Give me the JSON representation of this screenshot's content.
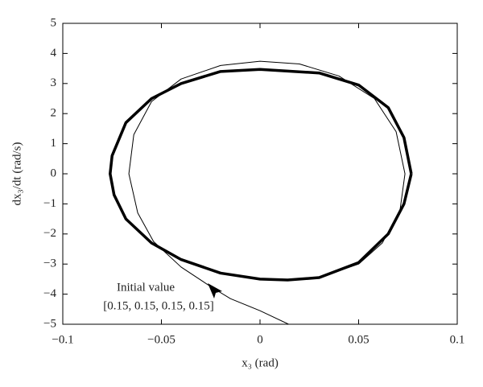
{
  "chart_data": {
    "type": "line",
    "x_label": "x₃ (rad)",
    "y_label": "dx₃/dt (rad/s)",
    "annotation": [
      "Initial value",
      "[0.15, 0.15, 0.15, 0.15]"
    ],
    "xlim": [
      -0.1,
      0.1
    ],
    "xticks": [
      {
        "value": -0.1,
        "label": "−0.1"
      },
      {
        "value": -0.05,
        "label": "−0.05"
      },
      0,
      0.05,
      0.1
    ],
    "ylim": [
      -5,
      5
    ],
    "yticks": [
      {
        "value": -5,
        "label": "−5"
      },
      {
        "value": -4,
        "label": "−4"
      },
      {
        "value": -3,
        "label": "−3"
      },
      {
        "value": -2,
        "label": "−2"
      },
      {
        "value": -1,
        "label": "−1"
      },
      0,
      1,
      2,
      3,
      4,
      5
    ],
    "series": [
      {
        "color": "#000000",
        "linewidth": 3.5,
        "x": [
          0.0767,
          0.073,
          0.065,
          0.05,
          0.03,
          0.0,
          -0.02,
          -0.04,
          -0.055,
          -0.068,
          -0.075,
          -0.076,
          -0.074,
          -0.068,
          -0.055,
          -0.04,
          -0.02,
          0.0,
          0.014,
          0.03,
          0.05,
          0.065,
          0.073,
          0.0767
        ],
        "values": [
          0,
          1.2,
          2.2,
          2.95,
          3.35,
          3.47,
          3.4,
          3.0,
          2.5,
          1.7,
          0.6,
          0,
          -0.7,
          -1.5,
          -2.3,
          -2.85,
          -3.3,
          -3.5,
          -3.53,
          -3.45,
          -2.95,
          -2.0,
          -1.0,
          0
        ]
      },
      {
        "color": "#000000",
        "linewidth": 1,
        "x": [
          0.0145,
          0.0,
          -0.015,
          -0.025,
          -0.04,
          -0.054,
          -0.062,
          -0.0665,
          -0.064,
          -0.055,
          -0.04,
          -0.02,
          0.0,
          0.02,
          0.04,
          0.058,
          0.069,
          0.0735,
          0.071,
          0.062,
          0.05,
          0.03,
          0.014,
          0.0,
          -0.02,
          -0.04,
          -0.055
        ],
        "values": [
          -5,
          -4.55,
          -4.15,
          -3.75,
          -3.1,
          -2.25,
          -1.3,
          0,
          1.3,
          2.4,
          3.15,
          3.6,
          3.74,
          3.65,
          3.25,
          2.5,
          1.4,
          0,
          -1.2,
          -2.3,
          -3.0,
          -3.45,
          -3.55,
          -3.5,
          -3.3,
          -2.85,
          -2.3
        ]
      }
    ]
  }
}
